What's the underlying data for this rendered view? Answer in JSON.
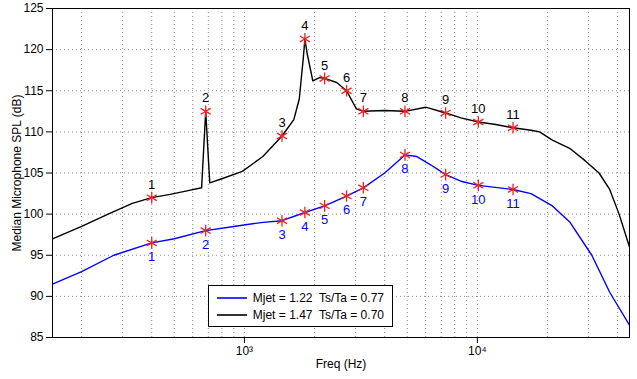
{
  "chart_data": {
    "type": "line",
    "x_label": "Freq (Hz)",
    "y_label": "Median Microphone SPL (dB)",
    "log": "x",
    "grid": true,
    "legend": "bottom",
    "xlim": [
      150,
      45000
    ],
    "ylim": [
      85,
      125
    ],
    "xticks": [
      {
        "value": 1000,
        "label": "10³"
      },
      {
        "value": 10000,
        "label": "10⁴"
      }
    ],
    "yticks": [
      85,
      90,
      95,
      100,
      105,
      110,
      115,
      120,
      125
    ],
    "series": [
      {
        "name": "Mjet = 1.22  Ts/Ta = 0.77",
        "color": "#0000ff",
        "x": [
          150,
          200,
          275,
          400,
          500,
          682,
          900,
          1200,
          1450,
          1818,
          2210,
          2745,
          3240,
          4000,
          4890,
          5500,
          6300,
          7310,
          8500,
          10100,
          14230,
          17000,
          21000,
          25000,
          31000,
          37000,
          45000
        ],
        "values": [
          91.5,
          93,
          95,
          96.5,
          97,
          98,
          98.5,
          99,
          99.2,
          100.2,
          101,
          102.2,
          103.2,
          105,
          107.2,
          107,
          106,
          104.8,
          104,
          103.5,
          103,
          102.5,
          101,
          99,
          95,
          90.5,
          86.5
        ],
        "points": {
          "x": [
            400,
            682,
            1450,
            1818,
            2210,
            2745,
            3240,
            4890,
            7310,
            10100,
            14230
          ],
          "values": [
            96.5,
            98,
            99.2,
            100.2,
            101,
            102.2,
            103.2,
            107.2,
            104.8,
            103.5,
            103
          ],
          "labels": [
            "1",
            "2",
            "3",
            "4",
            "5",
            "6",
            "7",
            "8",
            "9",
            "10",
            "11"
          ],
          "color": "#ee2222",
          "marker": "asterisk"
        }
      },
      {
        "name": "Mjet = 1.47  Ts/Ta = 0.70",
        "color": "#000000",
        "x": [
          150,
          200,
          260,
          330,
          400,
          480,
          560,
          655,
          682,
          710,
          800,
          980,
          1200,
          1450,
          1630,
          1720,
          1790,
          1818,
          1860,
          1966,
          2100,
          2210,
          2490,
          2745,
          3025,
          3240,
          4000,
          4890,
          6000,
          7310,
          8500,
          10100,
          12000,
          14230,
          17000,
          18500,
          21000,
          24900,
          29000,
          33300,
          37000,
          40600,
          45000
        ],
        "values": [
          97,
          98.5,
          100,
          101.3,
          102,
          102.4,
          102.8,
          103.2,
          112.5,
          103.8,
          104.3,
          105.2,
          107,
          109.5,
          111.5,
          114,
          119,
          121.3,
          119.5,
          116.2,
          116.6,
          116.5,
          116,
          115,
          112.8,
          112.5,
          112.6,
          112.5,
          113,
          112.3,
          111.7,
          111.2,
          110.9,
          110.5,
          110.2,
          110,
          109,
          108,
          106.5,
          105,
          103,
          100,
          96
        ],
        "points": {
          "x": [
            400,
            682,
            1450,
            1818,
            2210,
            2745,
            3240,
            4890,
            7310,
            10100,
            14230
          ],
          "values": [
            102,
            112.5,
            109.5,
            121.3,
            116.5,
            115,
            112.5,
            112.5,
            112.3,
            111.2,
            110.5
          ],
          "labels": [
            "1",
            "2",
            "3",
            "4",
            "5",
            "6",
            "7",
            "8",
            "9",
            "10",
            "11"
          ],
          "color": "#ee2222",
          "marker": "asterisk"
        }
      }
    ]
  }
}
